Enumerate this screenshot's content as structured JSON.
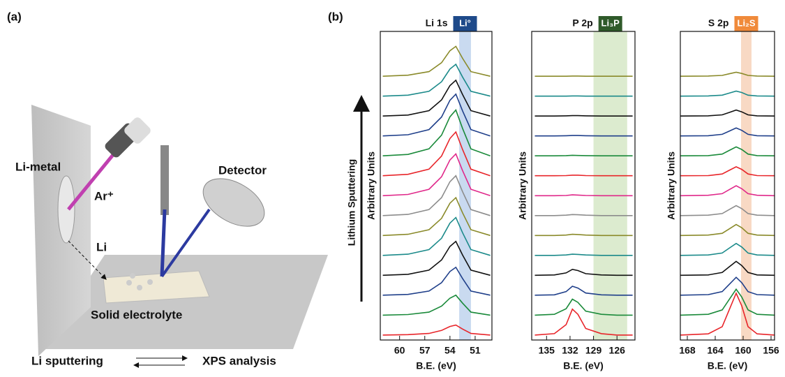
{
  "panel_a": {
    "label": "(a)",
    "wall_label": "Li-metal",
    "ion_label": "Ar⁺",
    "detector_label": "Detector",
    "li_label": "Li",
    "electrolyte_label": "Solid electrolyte",
    "cycle_left": "Li sputtering",
    "cycle_right": "XPS analysis"
  },
  "panel_b": {
    "label": "(b)",
    "arrow_label": "Lithium Sputtering"
  },
  "chart_data": [
    {
      "type": "line",
      "title": "Li 1s",
      "x_label": "B.E. (eV)",
      "y_label": "Arbitrary Units",
      "x": [
        62,
        59,
        56.5,
        55,
        54,
        53.3,
        52.5,
        51.5,
        49.2
      ],
      "xlim": [
        62.3,
        49
      ],
      "xticks": [
        60,
        57,
        54,
        51
      ],
      "ylim": [
        0,
        15.5
      ],
      "highlight": {
        "label": "Li°",
        "range": [
          52.9,
          51.5
        ],
        "color": "#c9daf0",
        "label_color": "#1e4a8a"
      },
      "series": [
        {
          "color": "#e8252a",
          "values": [
            0.25,
            0.27,
            0.33,
            0.48,
            0.68,
            0.75,
            0.55,
            0.33,
            0.25
          ]
        },
        {
          "color": "#1a8a3a",
          "values": [
            1.25,
            1.28,
            1.4,
            1.7,
            2.1,
            2.25,
            1.85,
            1.4,
            1.25
          ]
        },
        {
          "color": "#1f3f8a",
          "values": [
            2.25,
            2.29,
            2.46,
            2.88,
            3.44,
            3.65,
            3.09,
            2.46,
            2.25
          ]
        },
        {
          "color": "#111111",
          "values": [
            3.25,
            3.3,
            3.51,
            4.02,
            4.7,
            4.95,
            4.27,
            3.51,
            3.25
          ]
        },
        {
          "color": "#1b8a8a",
          "values": [
            4.25,
            4.31,
            4.54,
            5.11,
            5.87,
            6.15,
            5.39,
            4.54,
            4.25
          ]
        },
        {
          "color": "#8a8a2a",
          "values": [
            5.25,
            5.31,
            5.54,
            6.11,
            6.87,
            7.15,
            6.39,
            5.54,
            5.25
          ]
        },
        {
          "color": "#8c8c8c",
          "values": [
            6.25,
            6.31,
            6.55,
            7.15,
            7.95,
            8.25,
            7.45,
            6.55,
            6.25
          ]
        },
        {
          "color": "#e0288a",
          "values": [
            7.25,
            7.31,
            7.57,
            8.2,
            9.04,
            9.35,
            8.51,
            7.57,
            7.25
          ]
        },
        {
          "color": "#e8252a",
          "values": [
            8.25,
            8.32,
            8.58,
            9.24,
            10.12,
            10.45,
            9.57,
            8.58,
            8.25
          ]
        },
        {
          "color": "#1a8a3a",
          "values": [
            9.25,
            9.32,
            9.6,
            10.29,
            11.21,
            11.55,
            10.63,
            9.6,
            9.25
          ]
        },
        {
          "color": "#1f3f8a",
          "values": [
            10.25,
            10.31,
            10.57,
            11.2,
            12.04,
            12.35,
            11.51,
            10.57,
            10.25
          ]
        },
        {
          "color": "#111111",
          "values": [
            11.25,
            11.3,
            11.52,
            12.06,
            12.78,
            13.05,
            12.33,
            11.52,
            11.25
          ]
        },
        {
          "color": "#1b8a8a",
          "values": [
            12.25,
            12.3,
            12.49,
            12.97,
            13.61,
            13.85,
            13.21,
            12.49,
            12.25
          ]
        },
        {
          "color": "#8a8a2a",
          "values": [
            13.25,
            13.3,
            13.48,
            13.93,
            14.53,
            14.75,
            14.15,
            13.48,
            13.25
          ]
        }
      ]
    },
    {
      "type": "line",
      "title": "P 2p",
      "x_label": "B.E. (eV)",
      "y_label": "Arbitrary Units",
      "x": [
        136.5,
        134,
        132.5,
        131.7,
        131,
        130,
        128,
        126,
        124
      ],
      "xlim": [
        136.9,
        123.7
      ],
      "xticks": [
        135,
        132,
        129,
        126
      ],
      "ylim": [
        0,
        15.5
      ],
      "highlight": {
        "label": "Li₃P",
        "range": [
          129,
          124.7
        ],
        "color": "#dcebcf",
        "label_color": "#2f5a2a"
      },
      "series": [
        {
          "color": "#e8252a",
          "values": [
            0.25,
            0.32,
            0.77,
            1.55,
            1.29,
            0.58,
            0.32,
            0.25,
            0.25
          ]
        },
        {
          "color": "#1a8a3a",
          "values": [
            1.25,
            1.29,
            1.57,
            2.05,
            1.89,
            1.45,
            1.29,
            1.25,
            1.25
          ]
        },
        {
          "color": "#1f3f8a",
          "values": [
            2.25,
            2.27,
            2.43,
            2.7,
            2.61,
            2.36,
            2.27,
            2.25,
            2.25
          ]
        },
        {
          "color": "#111111",
          "values": [
            3.25,
            3.27,
            3.37,
            3.55,
            3.49,
            3.33,
            3.27,
            3.25,
            3.25
          ]
        },
        {
          "color": "#1b8a8a",
          "values": [
            4.25,
            4.25,
            4.27,
            4.31,
            4.3,
            4.27,
            4.25,
            4.25,
            4.25
          ]
        },
        {
          "color": "#8a8a2a",
          "values": [
            5.25,
            5.25,
            5.27,
            5.31,
            5.3,
            5.27,
            5.25,
            5.25,
            5.25
          ]
        },
        {
          "color": "#8c8c8c",
          "values": [
            6.25,
            6.25,
            6.27,
            6.3,
            6.29,
            6.27,
            6.25,
            6.25,
            6.25
          ]
        },
        {
          "color": "#e0288a",
          "values": [
            7.25,
            7.25,
            7.26,
            7.29,
            7.28,
            7.26,
            7.25,
            7.25,
            7.25
          ]
        },
        {
          "color": "#e8252a",
          "values": [
            8.25,
            8.25,
            8.26,
            8.28,
            8.28,
            8.26,
            8.25,
            8.25,
            8.25
          ]
        },
        {
          "color": "#1a8a3a",
          "values": [
            9.25,
            9.25,
            9.26,
            9.28,
            9.27,
            9.26,
            9.25,
            9.25,
            9.25
          ]
        },
        {
          "color": "#1f3f8a",
          "values": [
            10.25,
            10.25,
            10.26,
            10.27,
            10.27,
            10.26,
            10.25,
            10.25,
            10.25
          ]
        },
        {
          "color": "#111111",
          "values": [
            11.25,
            11.25,
            11.26,
            11.27,
            11.27,
            11.26,
            11.25,
            11.25,
            11.25
          ]
        },
        {
          "color": "#1b8a8a",
          "values": [
            12.25,
            12.25,
            12.25,
            12.26,
            12.26,
            12.25,
            12.25,
            12.25,
            12.25
          ]
        },
        {
          "color": "#8a8a2a",
          "values": [
            13.25,
            13.25,
            13.25,
            13.26,
            13.26,
            13.25,
            13.25,
            13.25,
            13.25
          ]
        }
      ]
    },
    {
      "type": "line",
      "title": "S 2p",
      "x_label": "B.E. (eV)",
      "y_label": "Arbitrary Units",
      "x": [
        169,
        165,
        163,
        162,
        161,
        160.2,
        159.3,
        158,
        155.5
      ],
      "xlim": [
        169,
        155.5
      ],
      "xticks": [
        168,
        164,
        160,
        156
      ],
      "ylim": [
        0,
        15.5
      ],
      "highlight": {
        "label": "Li₂S",
        "range": [
          160.3,
          158.8
        ],
        "color": "#f8d9c4",
        "label_color": "#f08a3a"
      },
      "series": [
        {
          "color": "#e8252a",
          "values": [
            0.25,
            0.31,
            0.67,
            1.51,
            2.35,
            1.72,
            0.67,
            0.31,
            0.25
          ]
        },
        {
          "color": "#1a8a3a",
          "values": [
            1.25,
            1.29,
            1.51,
            2.03,
            2.55,
            2.16,
            1.51,
            1.29,
            1.25
          ]
        },
        {
          "color": "#1f3f8a",
          "values": [
            2.25,
            2.28,
            2.43,
            2.79,
            3.15,
            2.88,
            2.43,
            2.28,
            2.25
          ]
        },
        {
          "color": "#111111",
          "values": [
            3.25,
            3.27,
            3.39,
            3.67,
            3.95,
            3.74,
            3.39,
            3.27,
            3.25
          ]
        },
        {
          "color": "#1b8a8a",
          "values": [
            4.25,
            4.27,
            4.37,
            4.61,
            4.85,
            4.67,
            4.37,
            4.27,
            4.25
          ]
        },
        {
          "color": "#8a8a2a",
          "values": [
            5.25,
            5.27,
            5.36,
            5.58,
            5.8,
            5.64,
            5.36,
            5.27,
            5.25
          ]
        },
        {
          "color": "#8c8c8c",
          "values": [
            6.25,
            6.27,
            6.35,
            6.55,
            6.75,
            6.6,
            6.35,
            6.27,
            6.25
          ]
        },
        {
          "color": "#e0288a",
          "values": [
            7.25,
            7.27,
            7.35,
            7.55,
            7.75,
            7.6,
            7.35,
            7.27,
            7.25
          ]
        },
        {
          "color": "#e8252a",
          "values": [
            8.25,
            8.26,
            8.34,
            8.52,
            8.7,
            8.57,
            8.34,
            8.26,
            8.25
          ]
        },
        {
          "color": "#1a8a3a",
          "values": [
            9.25,
            9.26,
            9.34,
            9.52,
            9.7,
            9.57,
            9.34,
            9.26,
            9.25
          ]
        },
        {
          "color": "#1f3f8a",
          "values": [
            10.25,
            10.26,
            10.33,
            10.49,
            10.65,
            10.53,
            10.33,
            10.26,
            10.25
          ]
        },
        {
          "color": "#111111",
          "values": [
            11.25,
            11.26,
            11.31,
            11.43,
            11.55,
            11.46,
            11.31,
            11.26,
            11.25
          ]
        },
        {
          "color": "#1b8a8a",
          "values": [
            12.25,
            12.26,
            12.3,
            12.4,
            12.5,
            12.43,
            12.3,
            12.26,
            12.25
          ]
        },
        {
          "color": "#8a8a2a",
          "values": [
            13.25,
            13.26,
            13.29,
            13.37,
            13.45,
            13.39,
            13.29,
            13.26,
            13.25
          ]
        }
      ]
    }
  ]
}
